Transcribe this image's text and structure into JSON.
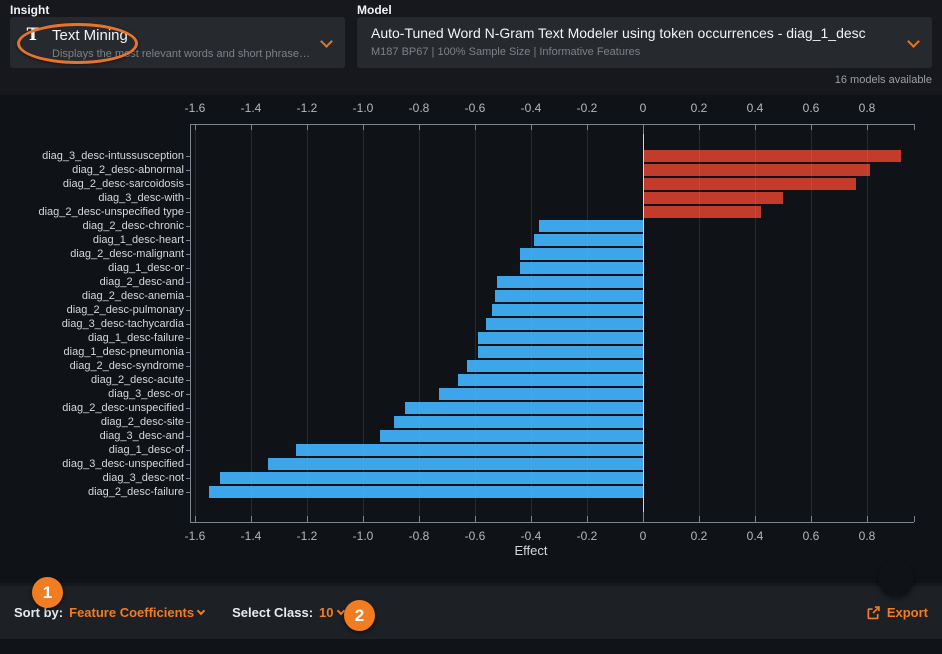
{
  "insight": {
    "section_label": "Insight",
    "selected": "Text Mining",
    "icon": "text-mining-T-icon",
    "description": "Displays the most relevant words and short phrases in varia…"
  },
  "model": {
    "section_label": "Model",
    "selected": "Auto-Tuned Word N-Gram Text Modeler using token occurrences - diag_1_desc",
    "details": "M187 BP67 | 100% Sample Size | Informative Features",
    "available_note": "16 models available"
  },
  "chart_data": {
    "type": "bar",
    "orientation": "horizontal",
    "title": "",
    "xlabel": "Effect",
    "ylabel": "",
    "xlim": [
      -1.62,
      0.97
    ],
    "grid": true,
    "positive_color": "#c23b2b",
    "negative_color": "#3da6ea",
    "x_ticks": [
      -1.6,
      -1.4,
      -1.2,
      -1.0,
      -0.8,
      -0.6,
      -0.4,
      -0.2,
      0,
      0.2,
      0.4,
      0.6,
      0.8
    ],
    "x_tick_labels": [
      "-1.6",
      "-1.4",
      "-1.2",
      "-1.0",
      "-0.8",
      "-0.6",
      "-0.4",
      "-0.2",
      "0",
      "0.2",
      "0.4",
      "0.6",
      "0.8"
    ],
    "categories": [
      "diag_3_desc-intussusception",
      "diag_2_desc-abnormal",
      "diag_2_desc-sarcoidosis",
      "diag_3_desc-with",
      "diag_2_desc-unspecified type",
      "diag_2_desc-chronic",
      "diag_1_desc-heart",
      "diag_2_desc-malignant",
      "diag_1_desc-or",
      "diag_2_desc-and",
      "diag_2_desc-anemia",
      "diag_2_desc-pulmonary",
      "diag_3_desc-tachycardia",
      "diag_1_desc-failure",
      "diag_1_desc-pneumonia",
      "diag_2_desc-syndrome",
      "diag_2_desc-acute",
      "diag_3_desc-or",
      "diag_2_desc-unspecified",
      "diag_2_desc-site",
      "diag_3_desc-and",
      "diag_1_desc-of",
      "diag_3_desc-unspecified",
      "diag_3_desc-not",
      "diag_2_desc-failure"
    ],
    "values": [
      0.92,
      0.81,
      0.76,
      0.5,
      0.42,
      -0.37,
      -0.39,
      -0.44,
      -0.44,
      -0.52,
      -0.53,
      -0.54,
      -0.56,
      -0.59,
      -0.59,
      -0.63,
      -0.66,
      -0.73,
      -0.85,
      -0.89,
      -0.94,
      -1.24,
      -1.34,
      -1.51,
      -1.55
    ]
  },
  "footer": {
    "sort_by_label": "Sort by:",
    "sort_by_value": "Feature Coefficients",
    "select_class_label": "Select Class:",
    "select_class_value": "10",
    "export_label": "Export"
  },
  "annotations": {
    "step1": "1",
    "step2": "2",
    "accent_color": "#f07d22"
  }
}
